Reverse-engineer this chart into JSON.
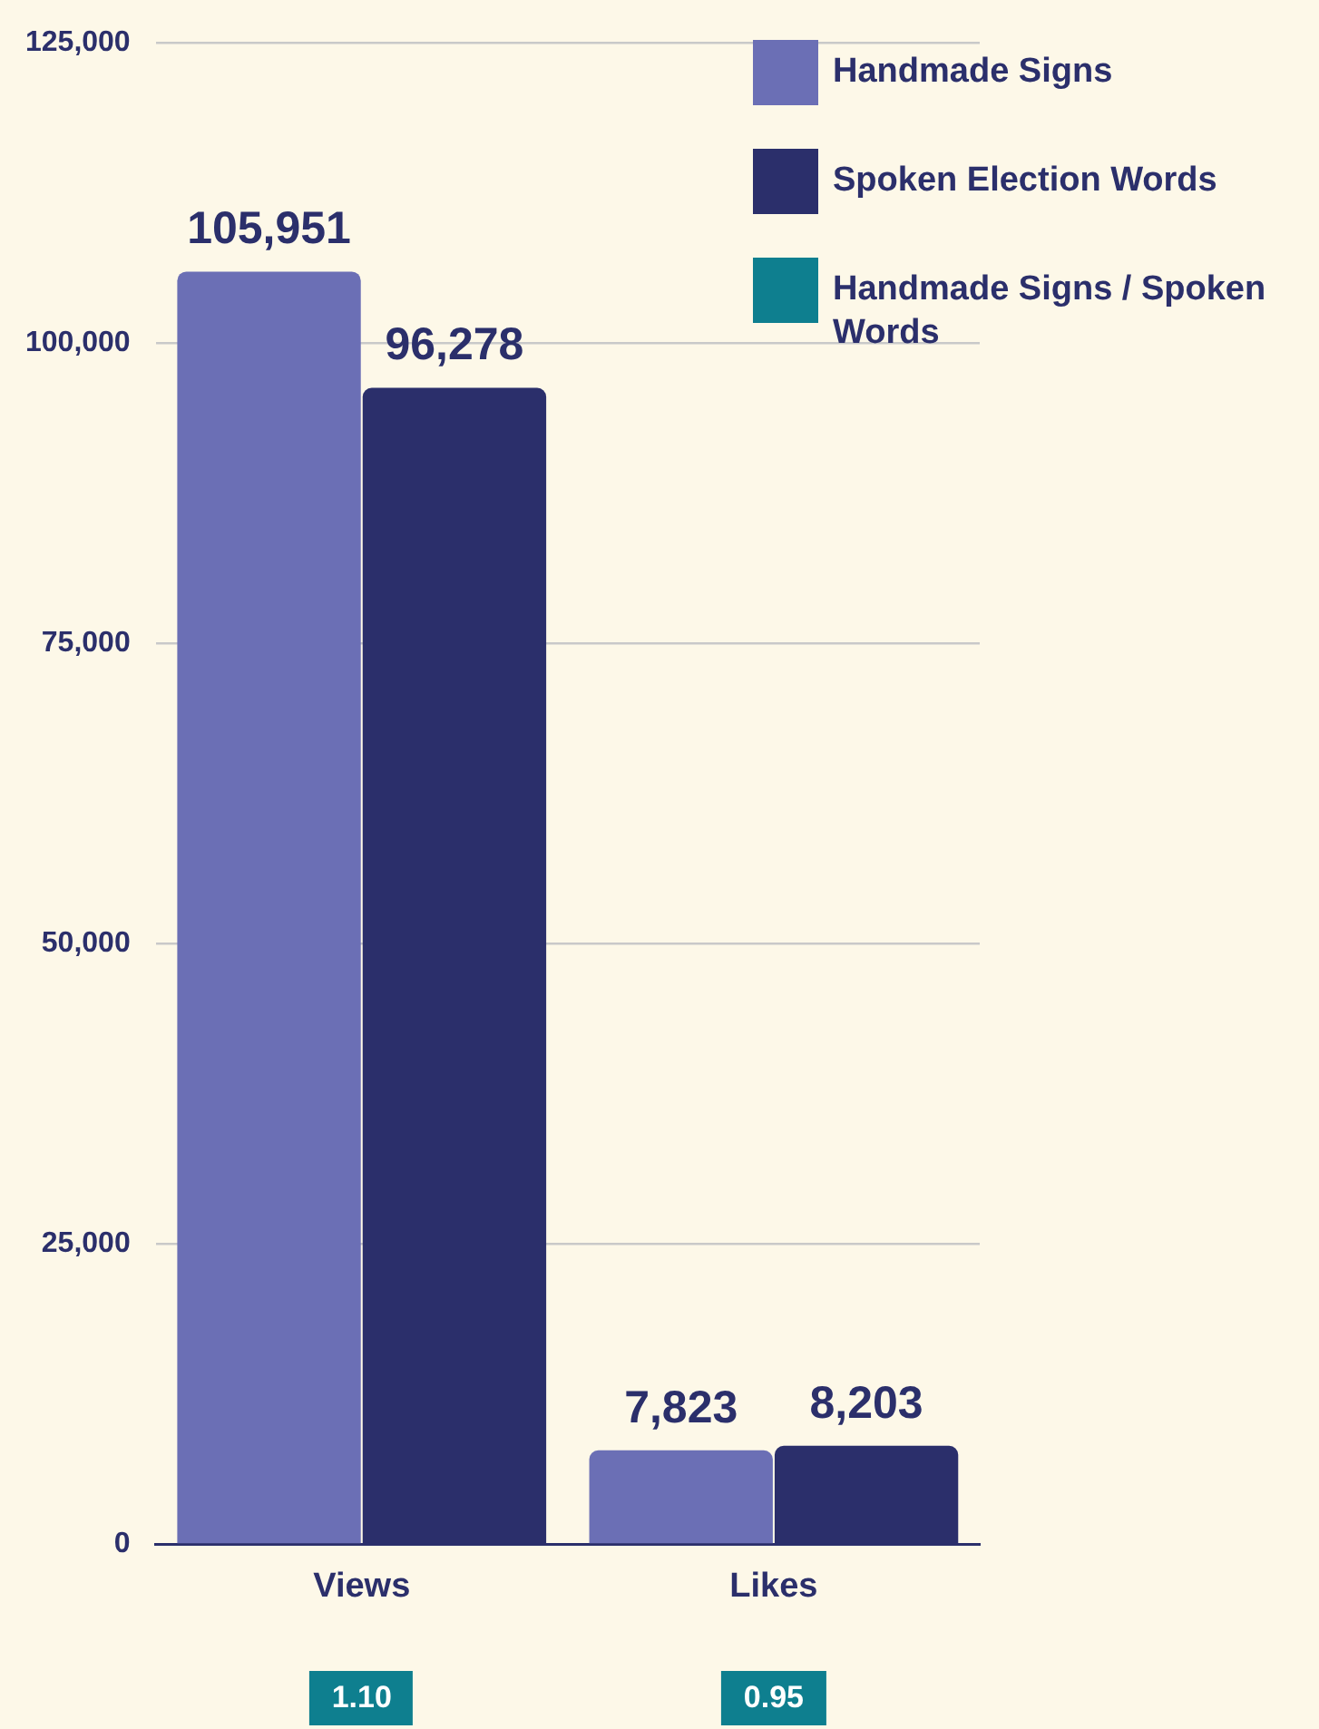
{
  "chart_data": {
    "type": "bar",
    "categories": [
      "Views",
      "Likes"
    ],
    "series": [
      {
        "name": "Handmade Signs",
        "color": "#6b6fb5",
        "values": [
          105951,
          7823
        ],
        "value_labels": [
          "105,951",
          "7,823"
        ]
      },
      {
        "name": "Spoken Election Words",
        "color": "#2b2f6b",
        "values": [
          96278,
          8203
        ],
        "value_labels": [
          "96,278",
          "8,203"
        ]
      },
      {
        "name": "Handmade Signs / Spoken Words",
        "type": "other",
        "color": "#0e7f8f",
        "values": [
          null,
          null
        ]
      }
    ],
    "annotations": [
      "1.10",
      "0.95"
    ],
    "ylim": [
      0,
      125000
    ],
    "yticks": [
      {
        "value": 0,
        "label": "0"
      },
      {
        "value": 25000,
        "label": "25,000"
      },
      {
        "value": 50000,
        "label": "50,000"
      },
      {
        "value": 75000,
        "label": "75,000"
      },
      {
        "value": 100000,
        "label": "100,000"
      },
      {
        "value": 125000,
        "label": "125,000"
      }
    ],
    "grid": "y",
    "legend": "top right"
  }
}
